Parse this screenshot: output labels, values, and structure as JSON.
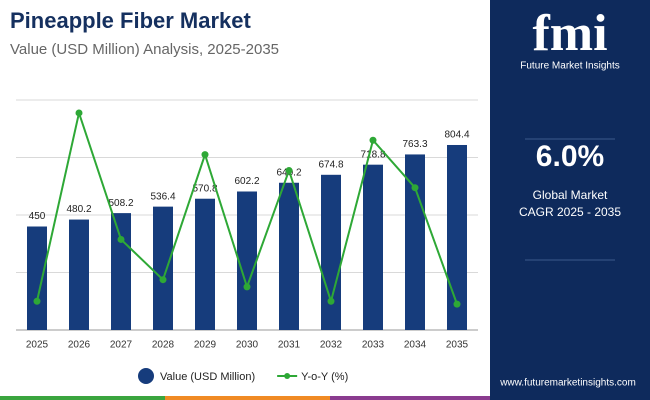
{
  "chart_data": {
    "type": "bar_line",
    "title": "Pineapple Fiber Market",
    "subtitle": "Value (USD Million) Analysis, 2025-2035",
    "categories": [
      "2025",
      "2026",
      "2027",
      "2028",
      "2029",
      "2030",
      "2031",
      "2032",
      "2033",
      "2034",
      "2035"
    ],
    "series": [
      {
        "name": "Value (USD Million)",
        "color": "#163c7c",
        "type": "bar",
        "values": [
          450,
          480.2,
          508.2,
          536.4,
          570.8,
          602.2,
          640.2,
          674.8,
          718.8,
          763.3,
          804.4
        ]
      },
      {
        "name": "Y-o-Y (%)",
        "color": "#2ea836",
        "type": "line",
        "axis": "y2",
        "values": [
          5.4,
          6.71,
          5.83,
          5.55,
          6.42,
          5.5,
          6.31,
          5.4,
          6.52,
          6.19,
          5.38
        ]
      }
    ],
    "ylim": [
      0,
      1000
    ],
    "yticks": [
      250,
      500,
      750,
      1000
    ],
    "y2lim": [
      5.2,
      6.8
    ],
    "grid": true
  },
  "sidebar": {
    "logo": "fmi",
    "brand": "Future Market Insights",
    "cagr": "6.0%",
    "cagr_caption": [
      "Global Market",
      "CAGR 2025 - 2035"
    ],
    "website": "www.futuremarketinsights.com"
  }
}
